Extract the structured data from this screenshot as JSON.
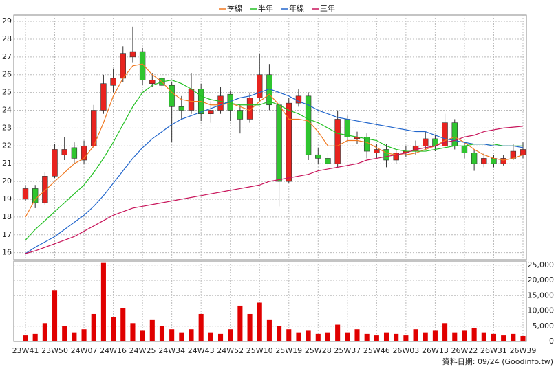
{
  "chart_data": [
    {
      "type": "candlestick",
      "categories": [
        "23W41",
        null,
        null,
        "23W50",
        null,
        null,
        "24W07",
        null,
        null,
        "24W16",
        null,
        null,
        "24W25",
        null,
        null,
        "24W34",
        null,
        null,
        "24W43",
        null,
        null,
        "24W52",
        null,
        null,
        "25W10",
        null,
        null,
        "25W19",
        null,
        null,
        "25W28",
        null,
        null,
        "25W37",
        null,
        null,
        "25W46",
        null,
        null,
        "26W03",
        null,
        null,
        "26W13",
        null,
        null,
        "26W22",
        null,
        null,
        "26W31",
        null,
        null,
        "26W39"
      ],
      "open": [
        19.0,
        19.6,
        18.8,
        20.3,
        21.5,
        21.9,
        21.2,
        22.0,
        24.0,
        25.4,
        25.8,
        27.0,
        27.3,
        25.5,
        25.8,
        25.4,
        24.2,
        24.0,
        25.2,
        23.8,
        24.0,
        24.9,
        24.0,
        23.5,
        24.7,
        26.0,
        24.3,
        20.0,
        24.4,
        24.8,
        21.5,
        21.3,
        21.0,
        23.5,
        22.4,
        22.5,
        21.6,
        21.8,
        21.2,
        21.6,
        21.7,
        22.0,
        22.4,
        22.0,
        23.3,
        22.0,
        21.6,
        21.0,
        21.3,
        21.0,
        21.3,
        21.5
      ],
      "high": [
        19.8,
        19.8,
        20.5,
        22.1,
        22.5,
        22.2,
        22.3,
        24.3,
        26.0,
        26.3,
        27.6,
        28.7,
        27.5,
        26.1,
        26.0,
        25.6,
        24.8,
        26.1,
        25.5,
        24.5,
        25.3,
        25.1,
        24.3,
        25.0,
        27.2,
        26.6,
        24.5,
        24.7,
        25.2,
        25.0,
        21.9,
        21.6,
        24.0,
        23.7,
        22.8,
        22.7,
        22.1,
        22.1,
        21.8,
        22.0,
        22.3,
        22.8,
        22.6,
        23.8,
        23.5,
        22.2,
        21.8,
        21.6,
        21.5,
        21.5,
        22.1,
        22.2
      ],
      "low": [
        18.9,
        18.5,
        18.7,
        20.2,
        21.2,
        21.0,
        21.0,
        21.9,
        23.8,
        25.0,
        25.6,
        26.7,
        25.4,
        25.3,
        25.0,
        22.2,
        23.5,
        23.8,
        23.4,
        23.3,
        23.8,
        23.4,
        22.7,
        23.3,
        24.5,
        24.0,
        18.6,
        19.9,
        24.2,
        21.2,
        21.0,
        20.8,
        20.8,
        22.2,
        22.1,
        21.3,
        21.3,
        20.8,
        21.0,
        21.4,
        21.5,
        21.8,
        21.7,
        21.9,
        21.8,
        21.3,
        20.6,
        20.8,
        20.8,
        20.9,
        21.2,
        21.3
      ],
      "close": [
        19.6,
        18.8,
        20.3,
        21.8,
        21.8,
        21.3,
        22.0,
        24.0,
        25.5,
        25.8,
        27.2,
        27.3,
        25.7,
        25.7,
        25.4,
        24.2,
        24.0,
        25.2,
        23.8,
        24.0,
        24.8,
        24.0,
        23.5,
        24.7,
        26.0,
        24.3,
        20.0,
        24.4,
        24.8,
        21.5,
        21.3,
        21.0,
        23.5,
        22.5,
        22.5,
        21.7,
        21.8,
        21.2,
        21.6,
        21.7,
        22.0,
        22.4,
        22.0,
        23.3,
        22.0,
        21.6,
        21.0,
        21.3,
        21.0,
        21.3,
        21.7,
        21.8
      ],
      "up_color": "#e8231f",
      "down_color": "#2fc52f",
      "series": [
        {
          "name": "季線",
          "color": "#f07820",
          "values": [
            18.0,
            19.0,
            19.5,
            20.0,
            20.5,
            21.0,
            21.3,
            22.0,
            23.3,
            24.8,
            25.8,
            26.5,
            26.6,
            26.0,
            25.6,
            25.0,
            24.6,
            24.5,
            24.5,
            24.3,
            24.3,
            24.4,
            24.2,
            24.0,
            24.5,
            24.9,
            24.3,
            23.5,
            23.5,
            23.4,
            22.8,
            22.0,
            22.0,
            22.3,
            22.3,
            22.2,
            21.9,
            21.6,
            21.5,
            21.5,
            21.6,
            21.8,
            22.0,
            22.3,
            22.5,
            22.2,
            21.8,
            21.5,
            21.3,
            21.2,
            21.3,
            21.5
          ]
        },
        {
          "name": "半年",
          "color": "#22c022",
          "values": [
            16.7,
            17.3,
            17.8,
            18.3,
            18.8,
            19.3,
            19.8,
            20.5,
            21.3,
            22.2,
            23.2,
            24.2,
            25.0,
            25.4,
            25.6,
            25.7,
            25.5,
            25.2,
            24.8,
            24.6,
            24.5,
            24.4,
            24.3,
            24.3,
            24.3,
            24.5,
            24.3,
            24.0,
            23.8,
            23.5,
            23.3,
            23.0,
            22.7,
            22.6,
            22.5,
            22.4,
            22.3,
            22.0,
            21.8,
            21.7,
            21.7,
            21.7,
            21.8,
            21.9,
            22.0,
            22.0,
            22.1,
            22.1,
            22.1,
            22.0,
            22.0,
            22.0
          ]
        },
        {
          "name": "年線",
          "color": "#2266cc",
          "values": [
            15.95,
            16.3,
            16.6,
            16.9,
            17.3,
            17.7,
            18.1,
            18.6,
            19.2,
            19.9,
            20.6,
            21.3,
            21.9,
            22.4,
            22.8,
            23.2,
            23.5,
            23.7,
            23.9,
            24.1,
            24.3,
            24.5,
            24.7,
            24.8,
            25.0,
            25.2,
            25.0,
            24.8,
            24.5,
            24.3,
            24.0,
            23.8,
            23.6,
            23.5,
            23.4,
            23.3,
            23.2,
            23.1,
            23.0,
            22.9,
            22.8,
            22.8,
            22.6,
            22.4,
            22.3,
            22.2,
            22.1,
            22.1,
            22.0,
            22.0,
            22.0,
            21.9
          ]
        },
        {
          "name": "三年",
          "color": "#c8145a",
          "values": [
            15.95,
            16.1,
            16.3,
            16.5,
            16.7,
            16.9,
            17.2,
            17.5,
            17.8,
            18.1,
            18.3,
            18.5,
            18.6,
            18.7,
            18.8,
            18.9,
            19.0,
            19.1,
            19.2,
            19.3,
            19.4,
            19.5,
            19.6,
            19.7,
            19.8,
            20.0,
            20.1,
            20.2,
            20.3,
            20.4,
            20.6,
            20.7,
            20.8,
            20.9,
            21.0,
            21.2,
            21.3,
            21.4,
            21.5,
            21.6,
            21.8,
            21.9,
            22.0,
            22.2,
            22.3,
            22.5,
            22.6,
            22.8,
            22.9,
            23.0,
            23.05,
            23.1
          ]
        }
      ],
      "ylim": [
        15.6,
        29.35
      ],
      "yticks": [
        16,
        17,
        18,
        19,
        20,
        21,
        22,
        23,
        24,
        25,
        26,
        27,
        28,
        29
      ],
      "grid": true,
      "legend": "top"
    },
    {
      "type": "bar",
      "color": "#e00000",
      "values": [
        2000,
        2500,
        6000,
        16800,
        5000,
        3000,
        4000,
        9000,
        25700,
        8000,
        11000,
        6000,
        3500,
        7000,
        5000,
        4000,
        3000,
        4000,
        9000,
        3000,
        2500,
        4000,
        11700,
        9000,
        12700,
        7000,
        5000,
        4000,
        3000,
        3500,
        2500,
        3000,
        5500,
        3000,
        4000,
        2500,
        2000,
        3000,
        2500,
        2000,
        4000,
        3000,
        3500,
        6000,
        3000,
        3500,
        4500,
        3000,
        2500,
        2000,
        2500,
        1800
      ],
      "ylim": [
        0,
        26300
      ],
      "yticks": [
        {
          "value": 0,
          "label": "0"
        },
        {
          "value": 5000,
          "label": "5,000"
        },
        {
          "value": 10000,
          "label": "10,000"
        },
        {
          "value": 15000,
          "label": "15,000"
        },
        {
          "value": 20000,
          "label": "20,000"
        },
        {
          "value": 25000,
          "label": "25,000"
        }
      ],
      "grid": true
    }
  ],
  "footer": "資料日期: 09/24 (Goodinfo.tw)"
}
